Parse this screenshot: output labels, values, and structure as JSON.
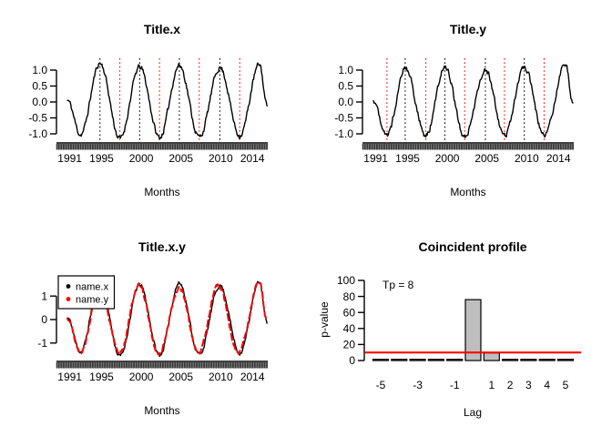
{
  "colors": {
    "red": "#FF0000",
    "black": "#000000",
    "bar_fill": "#BEBEBE",
    "background": "#FFFFFF"
  },
  "series_data": {
    "seriesX": {
      "extremes": [
        [
          1990.7,
          0.05
        ],
        [
          1992.35,
          -1.02
        ],
        [
          1994.8,
          1.22
        ],
        [
          1997.3,
          -1.15
        ],
        [
          1999.8,
          1.1
        ],
        [
          2002.3,
          -1.12
        ],
        [
          2004.8,
          1.15
        ],
        [
          2007.3,
          -1.1
        ],
        [
          2009.9,
          1.08
        ],
        [
          2012.4,
          -1.05
        ],
        [
          2014.9,
          1.18
        ],
        [
          2015.83,
          -0.1
        ]
      ]
    },
    "seriesY": {
      "extremes": [
        [
          1990.7,
          0.02
        ],
        [
          1992.4,
          -1.05
        ],
        [
          1994.7,
          1.07
        ],
        [
          1997.3,
          -1.05
        ],
        [
          1999.7,
          1.12
        ],
        [
          2002.2,
          -1.1
        ],
        [
          2004.8,
          1.0
        ],
        [
          2007.2,
          -1.05
        ],
        [
          2009.7,
          1.1
        ],
        [
          2012.2,
          -1.05
        ],
        [
          2014.9,
          1.17
        ],
        [
          2015.83,
          0.0
        ]
      ]
    }
  },
  "panels": [
    {
      "title": "Title.x",
      "xlabel": "Months",
      "chart_data": {
        "type": "line",
        "title": "Title.x",
        "xlabel": "Months",
        "x_range": [
          1989.32,
          2015.93
        ],
        "x_ticks": [
          1991,
          1995,
          2000,
          2005,
          2010,
          2014
        ],
        "y_ticks": [
          1,
          0.5,
          0,
          -0.5,
          -1
        ],
        "y_tick_labels": [
          "1.0",
          "0.5",
          "0.0",
          "-0.5",
          "-1.0"
        ],
        "ylim": [
          -1.29,
          1.37
        ],
        "monthly_rug": true,
        "series": [
          {
            "name": "name.x",
            "color": "#000000",
            "dash": "solid",
            "source": "seriesX",
            "scale": 1
          }
        ],
        "peak_lines": {
          "color": "#000000",
          "style": "dotted",
          "years": [
            1994.8,
            1999.8,
            2004.8,
            2009.9
          ]
        },
        "trough_lines": {
          "color": "#FF0000",
          "style": "dotted",
          "years": [
            1997.3,
            2002.3,
            2007.3,
            2012.4
          ]
        }
      }
    },
    {
      "title": "Title.y",
      "xlabel": "Months",
      "chart_data": {
        "type": "line",
        "title": "Title.y",
        "xlabel": "Months",
        "x_range": [
          1989.32,
          2015.93
        ],
        "x_ticks": [
          1991,
          1995,
          2000,
          2005,
          2010,
          2014
        ],
        "y_ticks": [
          1,
          0.5,
          0,
          -0.5,
          -1
        ],
        "y_tick_labels": [
          "1.0",
          "0.5",
          "0.0",
          "-0.5",
          "-1.0"
        ],
        "ylim": [
          -1.29,
          1.37
        ],
        "monthly_rug": true,
        "series": [
          {
            "name": "name.y",
            "color": "#000000",
            "dash": "solid",
            "source": "seriesY",
            "scale": 1
          }
        ],
        "peak_lines": {
          "color": "#000000",
          "style": "dotted",
          "years": [
            1994.7,
            1999.7,
            2004.8,
            2009.7
          ]
        },
        "trough_lines": {
          "color": "#FF0000",
          "style": "dotted",
          "years": [
            1992.4,
            1997.3,
            2002.2,
            2007.2,
            2012.2
          ]
        }
      }
    },
    {
      "title": "Title.x.y",
      "xlabel": "Months",
      "chart_data": {
        "type": "line",
        "title": "Title.x.y",
        "xlabel": "Months",
        "x_range": [
          1989.32,
          2015.93
        ],
        "x_ticks": [
          1991,
          1995,
          2000,
          2005,
          2010,
          2014
        ],
        "y_ticks": [
          1,
          0,
          -1
        ],
        "y_tick_labels": [
          "1",
          "0",
          "-1"
        ],
        "ylim": [
          -1.8,
          1.82
        ],
        "monthly_rug": true,
        "series": [
          {
            "name": "name.x",
            "color": "#000000",
            "dash": "solid",
            "source": "seriesX",
            "scale": 1.35
          },
          {
            "name": "name.y",
            "color": "#FF0000",
            "dash": "dashed",
            "source": "seriesY",
            "scale": 1.35
          }
        ],
        "legend": {
          "position": "topleft",
          "items": [
            {
              "label": "name.x",
              "color": "#000000"
            },
            {
              "label": "name.y",
              "color": "#FF0000"
            }
          ]
        }
      }
    },
    {
      "title": "Coincident profile",
      "xlabel": "Lag",
      "ylabel": "p-value",
      "chart_data": {
        "type": "bar",
        "title": "Coincident profile",
        "xlabel": "Lag",
        "ylabel": "p-value",
        "annotation": "Tp = 8",
        "categories": [
          -5,
          -4,
          -3,
          -2,
          -1,
          0,
          1,
          2,
          3,
          4,
          5
        ],
        "values": [
          1.5,
          1.5,
          1.5,
          1.5,
          1.5,
          76,
          9.5,
          1.5,
          1.5,
          1.5,
          1.5
        ],
        "bar_fill": "#BEBEBE",
        "bar_border": "#000000",
        "x_tick_lags": [
          -5,
          -3,
          -1,
          1,
          2,
          3,
          4,
          5
        ],
        "x_tick_labels": [
          "-5",
          "-3",
          "-1",
          "1",
          "2",
          "3",
          "4",
          "5"
        ],
        "y_ticks": [
          0,
          20,
          40,
          60,
          80,
          100
        ],
        "ylim": [
          0,
          100
        ],
        "threshold_line": {
          "value": 10,
          "color": "#FF0000"
        }
      }
    }
  ]
}
